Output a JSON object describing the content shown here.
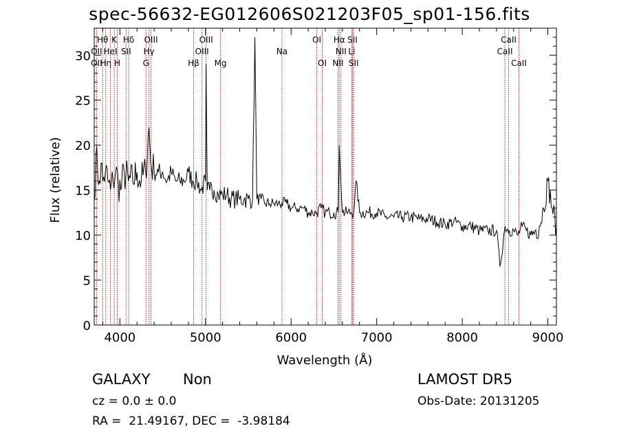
{
  "chart_data": {
    "type": "line",
    "title": "spec-56632-EG012606S021203F05_sp01-156.fits",
    "xlabel": "Wavelength (Å)",
    "ylabel": "Flux (relative)",
    "xlim": [
      3700,
      9100
    ],
    "ylim": [
      0,
      33
    ],
    "xticks": [
      "4000",
      "5000",
      "6000",
      "7000",
      "8000",
      "9000"
    ],
    "yticks": [
      "0",
      "5",
      "10",
      "15",
      "20",
      "25",
      "30"
    ],
    "grid": false,
    "colors": {
      "spectrum": "#000000",
      "lines": "#b22222"
    },
    "series": [
      {
        "x": [
          3700,
          3720,
          3740,
          3760,
          3780,
          3800,
          3830,
          3860,
          3890,
          3920,
          3950,
          3980,
          4010,
          4050,
          4100,
          4150,
          4200,
          4250,
          4300,
          4340,
          4360,
          4400,
          4450,
          4500,
          4550,
          4600,
          4650,
          4700,
          4750,
          4800,
          4850,
          4900,
          4950,
          5000,
          5007,
          5020,
          5050,
          5100,
          5150,
          5200,
          5250,
          5300,
          5350,
          5400,
          5450,
          5500,
          5550,
          5577,
          5600,
          5650,
          5700,
          5750,
          5800,
          5850,
          5890,
          5950,
          6000,
          6050,
          6100,
          6150,
          6200,
          6250,
          6300,
          6350,
          6400,
          6450,
          6500,
          6550,
          6563,
          6600,
          6650,
          6700,
          6730,
          6760,
          6800,
          6900,
          7000,
          7100,
          7200,
          7300,
          7400,
          7500,
          7600,
          7700,
          7800,
          7900,
          8000,
          8100,
          8200,
          8300,
          8400,
          8440,
          8500,
          8550,
          8600,
          8650,
          8700,
          8750,
          8800,
          8850,
          8900,
          8950,
          9000,
          9050,
          9100
        ],
        "y": [
          14,
          19,
          17,
          16,
          18,
          16,
          17,
          16,
          15,
          16,
          17,
          16,
          15,
          17,
          16,
          16,
          17,
          16,
          17,
          22,
          18,
          17,
          17,
          17,
          16,
          17,
          16,
          16,
          16,
          17,
          16,
          16,
          15,
          16,
          29,
          15,
          15,
          15,
          14.5,
          14.5,
          14.5,
          14,
          14,
          14,
          14,
          14,
          14,
          32,
          14,
          14,
          13.5,
          13.5,
          13.5,
          13.5,
          13.5,
          13.5,
          13,
          13,
          13,
          13,
          12.5,
          12.5,
          12.5,
          13,
          12.5,
          12.5,
          12.5,
          12.5,
          20,
          12.5,
          12.5,
          12.5,
          12.5,
          16,
          12.5,
          12.5,
          12.5,
          12,
          12,
          12,
          12,
          11.8,
          11.8,
          11.5,
          11.2,
          11.5,
          11,
          11,
          10.5,
          10.5,
          10.5,
          6.5,
          11,
          10.5,
          10.5,
          10,
          11,
          10.5,
          10,
          10.5,
          11,
          13,
          16,
          13,
          11
        ]
      }
    ],
    "line_markers": [
      {
        "label": "Hθ",
        "x": 3798,
        "row": 0
      },
      {
        "label": "K",
        "x": 3934,
        "row": 0
      },
      {
        "label": "Hδ",
        "x": 4102,
        "row": 0
      },
      {
        "label": "OIII",
        "x": 4363,
        "row": 0
      },
      {
        "label": "OIII",
        "x": 5007,
        "row": 0
      },
      {
        "label": "OI",
        "x": 6300,
        "row": 0
      },
      {
        "label": "Hα",
        "x": 6563,
        "row": 0
      },
      {
        "label": "SII",
        "x": 6717,
        "row": 0
      },
      {
        "label": "CaII",
        "x": 8542,
        "row": 0
      },
      {
        "label": "OII",
        "x": 3727,
        "row": 1
      },
      {
        "label": "HeI",
        "x": 3889,
        "row": 1
      },
      {
        "label": "SII",
        "x": 4072,
        "row": 1
      },
      {
        "label": "Hγ",
        "x": 4340,
        "row": 1
      },
      {
        "label": "OIII",
        "x": 4959,
        "row": 1
      },
      {
        "label": "Na",
        "x": 5893,
        "row": 1
      },
      {
        "label": "NII",
        "x": 6583,
        "row": 1
      },
      {
        "label": "Li",
        "x": 6708,
        "row": 1
      },
      {
        "label": "CaII",
        "x": 8498,
        "row": 1
      },
      {
        "label": "OII",
        "x": 3727,
        "row": 2
      },
      {
        "label": "Hη",
        "x": 3835,
        "row": 2
      },
      {
        "label": "H",
        "x": 3969,
        "row": 2
      },
      {
        "label": "G",
        "x": 4305,
        "row": 2
      },
      {
        "label": "Hβ",
        "x": 4861,
        "row": 2
      },
      {
        "label": "Mg",
        "x": 5175,
        "row": 2
      },
      {
        "label": "OI",
        "x": 6364,
        "row": 2
      },
      {
        "label": "NII",
        "x": 6548,
        "row": 2
      },
      {
        "label": "SII",
        "x": 6731,
        "row": 2
      },
      {
        "label": "CaII",
        "x": 8662,
        "row": 2
      }
    ],
    "red_lines": [
      3727,
      3798,
      3835,
      3889,
      3934,
      3969,
      4072,
      4102,
      4305,
      4340,
      4363,
      4861,
      4959,
      5007,
      5175,
      5893,
      6300,
      6364,
      6548,
      6563,
      6583,
      6708,
      6717,
      6731,
      8498,
      8542,
      8662
    ]
  },
  "info": {
    "class": "GALAXY",
    "subclass": "Non",
    "cz": "cz = 0.0 ± 0.0",
    "radec": "RA =  21.49167, DEC =  -3.98184",
    "survey": "LAMOST DR5",
    "obsdate": "Obs-Date: 20131205"
  }
}
